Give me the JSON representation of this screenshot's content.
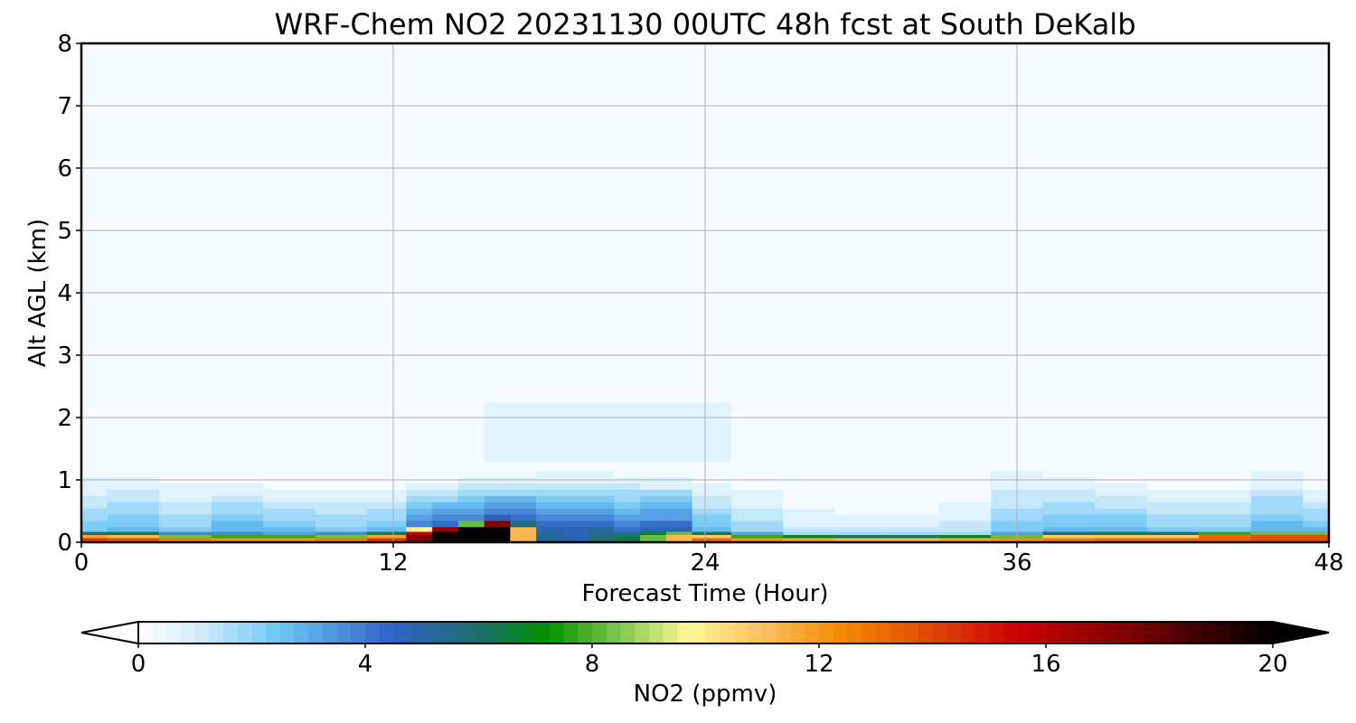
{
  "chart_data": {
    "type": "heatmap",
    "title": "WRF-Chem NO2  20231130 00UTC 48h fcst at South DeKalb",
    "xlabel": "Forecast Time (Hour)",
    "ylabel": "Alt AGL (km)",
    "xlim": [
      0,
      48
    ],
    "ylim": [
      0,
      8
    ],
    "xticks": [
      0,
      12,
      24,
      36,
      48
    ],
    "yticks": [
      0,
      1,
      2,
      3,
      4,
      5,
      6,
      7,
      8
    ],
    "grid": true,
    "hours": [
      0,
      2,
      4,
      6,
      8,
      10,
      12,
      13,
      14,
      15,
      16,
      17,
      18,
      19,
      20,
      21,
      22,
      23,
      24,
      26,
      28,
      30,
      32,
      34,
      36,
      38,
      40,
      42,
      44,
      46,
      48
    ],
    "altitudes_km": [
      0.0,
      0.05,
      0.1,
      0.15,
      0.2,
      0.3,
      0.4,
      0.5,
      0.6,
      0.7,
      0.8,
      0.9,
      1.0,
      1.1,
      1.2,
      1.4,
      1.6,
      1.8,
      2.0,
      2.5,
      3.0,
      4.0,
      5.0,
      6.0,
      7.0,
      8.0
    ],
    "surface_no2_ppmv": [
      14,
      13.5,
      12.5,
      12,
      12,
      12.5,
      14,
      17,
      19.5,
      20,
      20,
      11,
      5,
      4.5,
      5.5,
      6,
      8,
      11,
      13,
      12,
      11.5,
      11,
      11,
      11.5,
      12,
      12.5,
      13,
      13,
      13,
      13.5,
      13.5
    ],
    "surface_layer_depth_km": [
      0.08,
      0.08,
      0.06,
      0.05,
      0.05,
      0.06,
      0.08,
      0.14,
      0.18,
      0.22,
      0.28,
      0.2,
      0.1,
      0.1,
      0.12,
      0.1,
      0.1,
      0.1,
      0.08,
      0.06,
      0.05,
      0.05,
      0.05,
      0.05,
      0.06,
      0.08,
      0.08,
      0.08,
      0.1,
      0.1,
      0.1
    ],
    "boundary_layer_ppmv": [
      2.5,
      3,
      2.5,
      3.5,
      3,
      2.5,
      3,
      4.5,
      5,
      5,
      5.5,
      5.5,
      5,
      5,
      5,
      4.5,
      5,
      5,
      3,
      2,
      1.5,
      1.5,
      1.5,
      1.5,
      2.5,
      3,
      3,
      2.5,
      2.5,
      3,
      3
    ],
    "boundary_layer_top_km": [
      1.0,
      1.0,
      0.9,
      0.9,
      0.85,
      0.8,
      0.85,
      0.9,
      0.95,
      1.0,
      1.0,
      1.05,
      1.1,
      1.1,
      1.1,
      1.05,
      1.0,
      1.0,
      0.9,
      0.85,
      0.5,
      0.45,
      0.45,
      0.6,
      1.1,
      1.05,
      0.9,
      0.85,
      0.8,
      1.1,
      0.8
    ],
    "residual_layer": {
      "hours": [
        16,
        24
      ],
      "altitude_km": [
        1.3,
        2.0
      ],
      "ppmv": 0.5
    },
    "colorbar": {
      "label": "NO2  (ppmv)",
      "min": 0,
      "max": 20,
      "ticks": [
        0,
        4,
        8,
        12,
        16,
        20
      ],
      "extend": "both",
      "stops": [
        {
          "v": 0,
          "c": "#ffffff"
        },
        {
          "v": 1,
          "c": "#d6eefb"
        },
        {
          "v": 2.5,
          "c": "#6cc6f5"
        },
        {
          "v": 4.5,
          "c": "#2e62c4"
        },
        {
          "v": 6,
          "c": "#1b6f6a"
        },
        {
          "v": 7.2,
          "c": "#008f00"
        },
        {
          "v": 8.6,
          "c": "#8ccc5a"
        },
        {
          "v": 9.7,
          "c": "#fff79a"
        },
        {
          "v": 11,
          "c": "#fdc060"
        },
        {
          "v": 12.4,
          "c": "#f68a00"
        },
        {
          "v": 14,
          "c": "#e04400"
        },
        {
          "v": 15.5,
          "c": "#cc0000"
        },
        {
          "v": 17.5,
          "c": "#7a0000"
        },
        {
          "v": 20,
          "c": "#000000"
        }
      ]
    }
  }
}
